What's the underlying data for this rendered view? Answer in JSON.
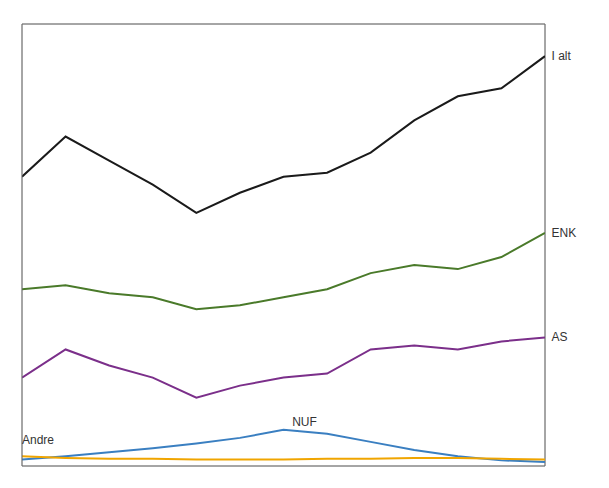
{
  "chart_data": {
    "type": "line",
    "x": [
      2002,
      2003,
      2004,
      2005,
      2006,
      2007,
      2008,
      2009,
      2010,
      2011,
      2012,
      2013,
      2014
    ],
    "series": [
      {
        "name": "I alt",
        "color": "#1a1a1a",
        "values": [
          36000,
          41000,
          38000,
          35000,
          31500,
          34000,
          36000,
          36500,
          39000,
          43000,
          46000,
          47000,
          51000
        ]
      },
      {
        "name": "ENK",
        "color": "#4a7a2a",
        "values": [
          22000,
          22500,
          21500,
          21000,
          19500,
          20000,
          21000,
          22000,
          24000,
          25000,
          24500,
          26000,
          29000
        ]
      },
      {
        "name": "AS",
        "color": "#7b2f8a",
        "values": [
          11000,
          14500,
          12500,
          11000,
          8500,
          10000,
          11000,
          11500,
          14500,
          15000,
          14500,
          15500,
          16000
        ]
      },
      {
        "name": "NUF",
        "color": "#3a7fc1",
        "values": [
          800,
          1200,
          1700,
          2200,
          2800,
          3500,
          4500,
          4000,
          3000,
          2000,
          1200,
          700,
          500
        ]
      },
      {
        "name": "Andre",
        "color": "#f0a500",
        "values": [
          1200,
          1000,
          900,
          900,
          800,
          800,
          800,
          900,
          900,
          1000,
          1000,
          900,
          800
        ]
      }
    ],
    "annotations": [
      {
        "text": "I alt",
        "x": 2014.15,
        "y": 51000
      },
      {
        "text": "ENK",
        "x": 2014.15,
        "y": 29000
      },
      {
        "text": "AS",
        "x": 2014.15,
        "y": 16000
      },
      {
        "text": "NUF",
        "x": 2008.2,
        "y": 5500
      },
      {
        "text": "Andre",
        "x": 2002,
        "y": 3200
      }
    ],
    "xlim": [
      2002,
      2014
    ],
    "xticks": [
      2002,
      2005,
      2008,
      2011,
      2014
    ],
    "ylim": [
      0,
      55000
    ],
    "yticks": [
      0,
      14000,
      28000,
      42000
    ],
    "grid": true,
    "tick_labels": false
  }
}
